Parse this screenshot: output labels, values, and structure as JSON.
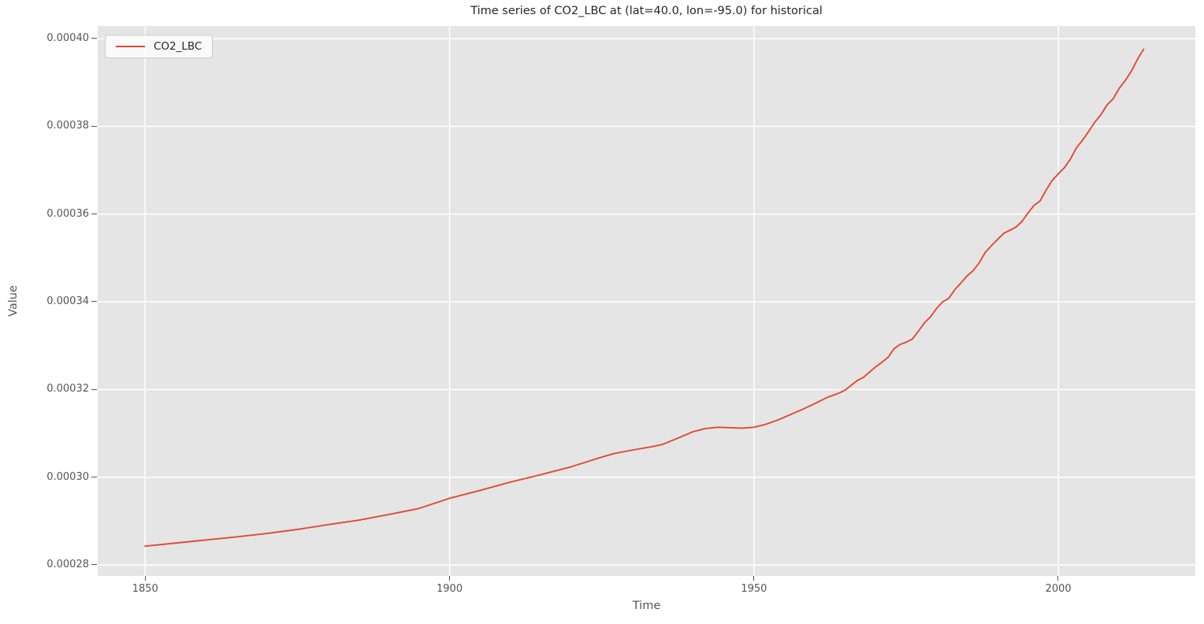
{
  "style": {
    "line_color": "#e24a33",
    "axes_background": "#e5e5e5",
    "grid_color": "#ffffff",
    "tick_color": "#555555",
    "title_color": "#262626"
  },
  "legend": {
    "entries": [
      {
        "label": "CO2_LBC",
        "color": "#e24a33"
      }
    ]
  },
  "chart_data": {
    "type": "line",
    "title": "Time series of CO2_LBC at (lat=40.0, lon=-95.0) for historical",
    "xlabel": "Time",
    "ylabel": "Value",
    "xlim": [
      1842.2,
      2022.5
    ],
    "ylim": [
      0.0002775,
      0.0004029
    ],
    "grid": true,
    "legend_position": "upper left",
    "x_ticks": [
      {
        "value": 1850,
        "label": "1850"
      },
      {
        "value": 1900,
        "label": "1900"
      },
      {
        "value": 1950,
        "label": "1950"
      },
      {
        "value": 2000,
        "label": "2000"
      }
    ],
    "y_ticks": [
      {
        "value": 0.00028,
        "label": "0.00028"
      },
      {
        "value": 0.0003,
        "label": "0.00030"
      },
      {
        "value": 0.00032,
        "label": "0.00032"
      },
      {
        "value": 0.00034,
        "label": "0.00034"
      },
      {
        "value": 0.00036,
        "label": "0.00036"
      },
      {
        "value": 0.00038,
        "label": "0.00038"
      },
      {
        "value": 0.0004,
        "label": "0.00040"
      }
    ],
    "series": [
      {
        "name": "CO2_LBC",
        "color": "#e24a33",
        "x": [
          1850,
          1855,
          1860,
          1865,
          1870,
          1875,
          1880,
          1885,
          1890,
          1895,
          1900,
          1905,
          1910,
          1915,
          1920,
          1925,
          1927,
          1930,
          1933,
          1935,
          1938,
          1940,
          1942,
          1944,
          1946,
          1948,
          1950,
          1952,
          1954,
          1956,
          1958,
          1960,
          1962,
          1964,
          1965,
          1966,
          1967,
          1968,
          1969,
          1970,
          1971,
          1972,
          1973,
          1974,
          1975,
          1976,
          1977,
          1978,
          1979,
          1980,
          1981,
          1982,
          1983,
          1984,
          1985,
          1986,
          1987,
          1988,
          1989,
          1990,
          1991,
          1992,
          1993,
          1994,
          1995,
          1996,
          1997,
          1998,
          1999,
          2000,
          2001,
          2002,
          2003,
          2004,
          2005,
          2006,
          2007,
          2008,
          2009,
          2010,
          2011,
          2012,
          2013,
          2014
        ],
        "y": [
          0.0002843,
          0.000285,
          0.0002857,
          0.0002864,
          0.0002872,
          0.0002881,
          0.0002892,
          0.0002902,
          0.0002915,
          0.0002929,
          0.0002952,
          0.000297,
          0.0002989,
          0.0003006,
          0.0003024,
          0.0003046,
          0.0003054,
          0.0003062,
          0.0003069,
          0.0003075,
          0.0003092,
          0.0003104,
          0.0003111,
          0.0003114,
          0.0003113,
          0.0003112,
          0.0003114,
          0.0003121,
          0.0003131,
          0.0003143,
          0.0003155,
          0.0003168,
          0.0003182,
          0.0003192,
          0.0003199,
          0.000321,
          0.0003221,
          0.0003228,
          0.000324,
          0.0003252,
          0.0003262,
          0.0003273,
          0.0003293,
          0.0003303,
          0.0003308,
          0.0003315,
          0.0003333,
          0.0003352,
          0.0003366,
          0.0003385,
          0.00034,
          0.0003408,
          0.0003428,
          0.0003443,
          0.0003459,
          0.0003471,
          0.0003489,
          0.0003513,
          0.0003528,
          0.0003542,
          0.0003556,
          0.0003563,
          0.000357,
          0.0003583,
          0.0003602,
          0.000362,
          0.000363,
          0.0003655,
          0.0003677,
          0.0003692,
          0.0003706,
          0.0003726,
          0.0003752,
          0.0003769,
          0.0003789,
          0.000381,
          0.0003827,
          0.0003849,
          0.0003863,
          0.0003887,
          0.0003905,
          0.0003926,
          0.0003953,
          0.0003976
        ]
      }
    ]
  }
}
